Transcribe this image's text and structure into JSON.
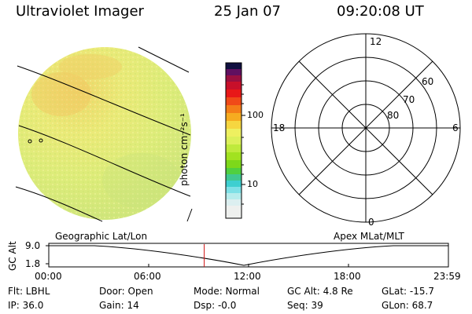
{
  "header": {
    "title": "Ultraviolet Imager",
    "date": "25 Jan 07",
    "time": "09:20:08 UT"
  },
  "colorbar": {
    "units": "photon cm⁻²s⁻¹",
    "tick_labels": [
      "100",
      "10"
    ]
  },
  "polar_plot": {
    "mlt_labels": {
      "top": "12",
      "left": "18",
      "right": "6",
      "bottom": "0"
    },
    "lat_labels": [
      "60",
      "70",
      "80"
    ]
  },
  "timeline": {
    "left_label": "Geographic Lat/Lon",
    "right_label": "Apex MLat/MLT",
    "axis_title": "GC Alt",
    "y_ticks": [
      "9.0",
      "1.8"
    ],
    "x_ticks": [
      "00:00",
      "06:00",
      "12:00",
      "18:00",
      "23:59"
    ],
    "current_time_fraction": 0.389
  },
  "status": {
    "flt": "Flt: LBHL",
    "ip": "IP: 36.0",
    "door": "Door: Open",
    "gain": "Gain: 14",
    "mode": "Mode: Normal",
    "dsp": "Dsp:   -0.0",
    "gc_alt": "GC Alt: 4.8 Re",
    "seq": "Seq: 39",
    "glat": "GLat:  -15.7",
    "glon": "GLon:  68.7"
  },
  "colors": {
    "disk_base": "#e6f07a",
    "disk_warm": "#f2cf62",
    "disk_cool": "#cfe67a",
    "current_time_marker": "#d01010"
  }
}
